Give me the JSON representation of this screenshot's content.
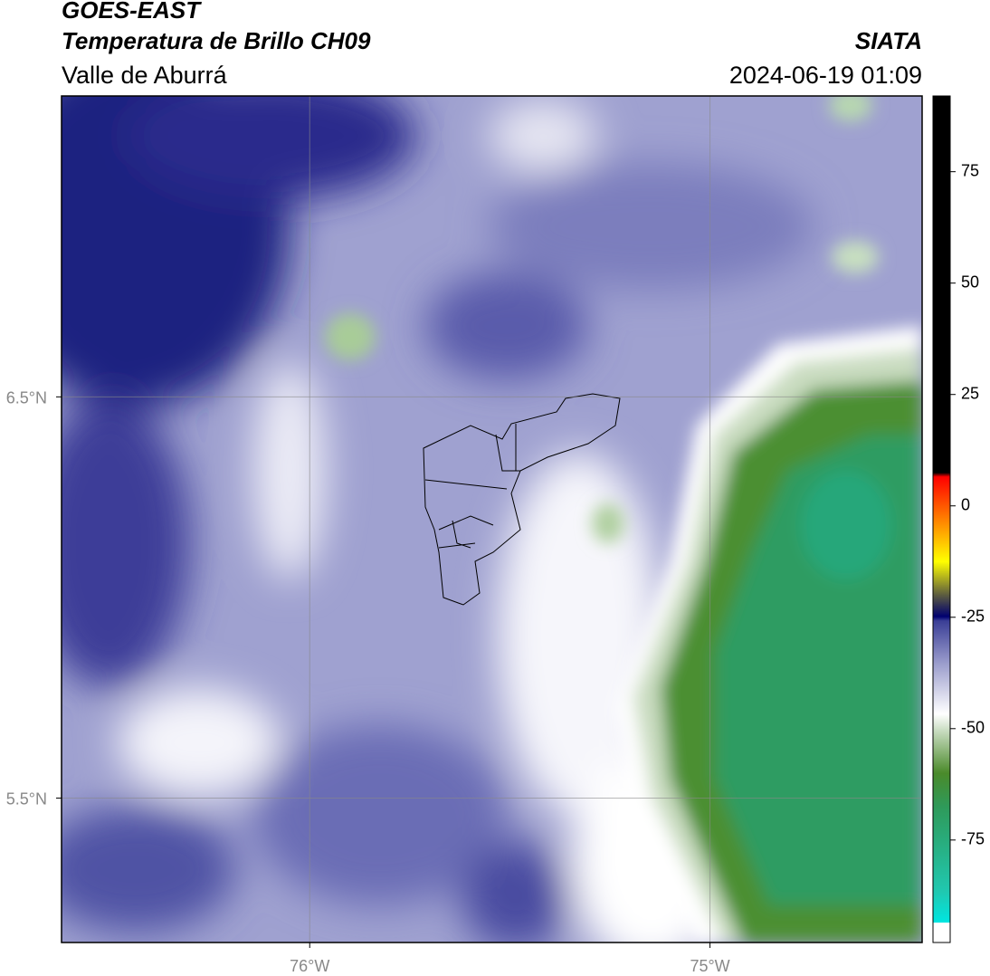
{
  "header": {
    "satellite": "GOES-EAST",
    "title": "Temperatura de Brillo CH09",
    "region": "Valle de Aburrá",
    "agency": "SIATA",
    "datetime": "2024-06-19 01:09"
  },
  "map": {
    "latlim": [
      5.14,
      7.25
    ],
    "lonlim": [
      -76.62,
      -74.47
    ],
    "latticks": [
      {
        "value": 6.5,
        "label": "6.5°N"
      },
      {
        "value": 5.5,
        "label": "5.5°N"
      }
    ],
    "lonticks": [
      {
        "value": -76,
        "label": "76°W"
      },
      {
        "value": -75,
        "label": "75°W"
      }
    ]
  },
  "colorbar": {
    "lim": [
      -98,
      92
    ],
    "ticks": [
      75,
      50,
      25,
      0,
      -25,
      -50,
      -75
    ]
  }
}
